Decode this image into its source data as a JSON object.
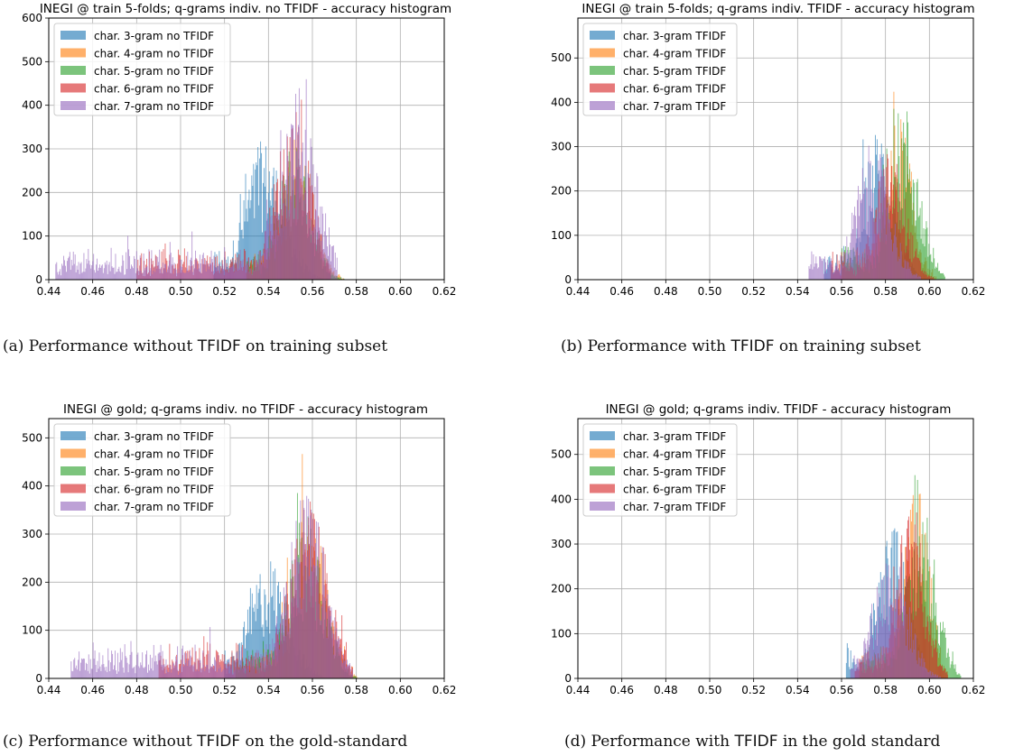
{
  "captions": [
    {
      "label": "(a) Performance without ",
      "kw": "TFIDF",
      "rest": " on training subset"
    },
    {
      "label": "(b) Performance with ",
      "kw": "TFIDF",
      "rest": " on training subset"
    },
    {
      "label": "(c) Performance without ",
      "kw": "TFIDF",
      "rest": " on the gold-standard"
    },
    {
      "label": "(d) Performance with ",
      "kw": "TFIDF",
      "rest": " in the gold standard"
    }
  ],
  "colors": [
    "#1f77b4",
    "#ff7f0e",
    "#2ca02c",
    "#d62728",
    "#9467bd"
  ],
  "chart_data": [
    {
      "type": "bar",
      "title": "INEGI @ train 5-folds;  q-grams indiv. no TFIDF - accuracy histogram",
      "xlim": [
        0.44,
        0.62
      ],
      "ylim": [
        0,
        600
      ],
      "xticks": [
        "0.44",
        "0.46",
        "0.48",
        "0.50",
        "0.52",
        "0.54",
        "0.56",
        "0.58",
        "0.60",
        "0.62"
      ],
      "yticks": [
        "0",
        "100",
        "200",
        "300",
        "400",
        "500",
        "600"
      ],
      "grid": true,
      "legend": "top-left",
      "series": [
        {
          "name": "char. 3-gram no TFIDF",
          "center": 0.538,
          "spread": 0.009,
          "height": 240,
          "start": 0.515,
          "end": 0.565
        },
        {
          "name": "char. 4-gram no TFIDF",
          "center": 0.553,
          "spread": 0.007,
          "height": 260,
          "start": 0.53,
          "end": 0.574
        },
        {
          "name": "char. 5-gram no TFIDF",
          "center": 0.552,
          "spread": 0.007,
          "height": 250,
          "start": 0.53,
          "end": 0.575
        },
        {
          "name": "char. 6-gram no TFIDF",
          "center": 0.551,
          "spread": 0.008,
          "height": 300,
          "start": 0.48,
          "end": 0.568
        },
        {
          "name": "char. 7-gram no TFIDF",
          "center": 0.553,
          "spread": 0.009,
          "height": 330,
          "start": 0.443,
          "end": 0.571
        }
      ]
    },
    {
      "type": "bar",
      "title": "INEGI @ train 5-folds;  q-grams indiv. TFIDF - accuracy histogram",
      "xlim": [
        0.44,
        0.62
      ],
      "ylim": [
        0,
        590
      ],
      "xticks": [
        "0.44",
        "0.46",
        "0.48",
        "0.50",
        "0.52",
        "0.54",
        "0.56",
        "0.58",
        "0.60",
        "0.62"
      ],
      "yticks": [
        "0",
        "100",
        "200",
        "300",
        "400",
        "500"
      ],
      "grid": true,
      "legend": "top-left",
      "series": [
        {
          "name": "char. 3-gram TFIDF",
          "center": 0.577,
          "spread": 0.007,
          "height": 260,
          "start": 0.552,
          "end": 0.596
        },
        {
          "name": "char. 4-gram TFIDF",
          "center": 0.586,
          "spread": 0.006,
          "height": 280,
          "start": 0.56,
          "end": 0.603
        },
        {
          "name": "char. 5-gram TFIDF",
          "center": 0.588,
          "spread": 0.007,
          "height": 300,
          "start": 0.56,
          "end": 0.607
        },
        {
          "name": "char. 6-gram TFIDF",
          "center": 0.582,
          "spread": 0.007,
          "height": 220,
          "start": 0.555,
          "end": 0.602
        },
        {
          "name": "char. 7-gram TFIDF",
          "center": 0.574,
          "spread": 0.008,
          "height": 230,
          "start": 0.545,
          "end": 0.596
        }
      ]
    },
    {
      "type": "bar",
      "title": "INEGI @ gold;  q-grams indiv. no TFIDF - accuracy histogram",
      "xlim": [
        0.44,
        0.62
      ],
      "ylim": [
        0,
        540
      ],
      "xticks": [
        "0.44",
        "0.46",
        "0.48",
        "0.50",
        "0.52",
        "0.54",
        "0.56",
        "0.58",
        "0.60",
        "0.62"
      ],
      "yticks": [
        "0",
        "100",
        "200",
        "300",
        "400",
        "500"
      ],
      "grid": true,
      "legend": "top-left",
      "series": [
        {
          "name": "char. 3-gram no TFIDF",
          "center": 0.54,
          "spread": 0.009,
          "height": 190,
          "start": 0.52,
          "end": 0.57
        },
        {
          "name": "char. 4-gram no TFIDF",
          "center": 0.558,
          "spread": 0.008,
          "height": 270,
          "start": 0.53,
          "end": 0.58
        },
        {
          "name": "char. 5-gram no TFIDF",
          "center": 0.557,
          "spread": 0.008,
          "height": 260,
          "start": 0.525,
          "end": 0.58
        },
        {
          "name": "char. 6-gram no TFIDF",
          "center": 0.558,
          "spread": 0.009,
          "height": 280,
          "start": 0.49,
          "end": 0.578
        },
        {
          "name": "char. 7-gram no TFIDF",
          "center": 0.557,
          "spread": 0.009,
          "height": 290,
          "start": 0.45,
          "end": 0.578
        }
      ]
    },
    {
      "type": "bar",
      "title": "INEGI @ gold;  q-grams indiv. TFIDF - accuracy histogram",
      "xlim": [
        0.44,
        0.62
      ],
      "ylim": [
        0,
        580
      ],
      "xticks": [
        "0.44",
        "0.46",
        "0.48",
        "0.50",
        "0.52",
        "0.54",
        "0.56",
        "0.58",
        "0.60",
        "0.62"
      ],
      "yticks": [
        "0",
        "100",
        "200",
        "300",
        "400",
        "500"
      ],
      "grid": true,
      "legend": "top-left",
      "series": [
        {
          "name": "char. 3-gram TFIDF",
          "center": 0.583,
          "spread": 0.007,
          "height": 260,
          "start": 0.562,
          "end": 0.603
        },
        {
          "name": "char. 4-gram TFIDF",
          "center": 0.594,
          "spread": 0.006,
          "height": 320,
          "start": 0.568,
          "end": 0.608
        },
        {
          "name": "char. 5-gram TFIDF",
          "center": 0.596,
          "spread": 0.007,
          "height": 290,
          "start": 0.568,
          "end": 0.614
        },
        {
          "name": "char. 6-gram TFIDF",
          "center": 0.591,
          "spread": 0.007,
          "height": 280,
          "start": 0.566,
          "end": 0.608
        },
        {
          "name": "char. 7-gram TFIDF",
          "center": 0.582,
          "spread": 0.008,
          "height": 220,
          "start": 0.564,
          "end": 0.605
        }
      ]
    }
  ]
}
